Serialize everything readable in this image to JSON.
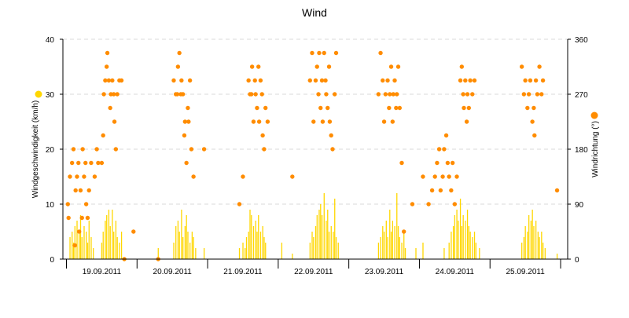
{
  "chart_data": {
    "type": "scatter",
    "title": "Wind",
    "ylabel_left": "Windgeschwindigkeit (km/h)",
    "ylabel_right": "Windrichtung (°)",
    "ylim_left": [
      0,
      40
    ],
    "yticks_left": [
      0,
      10,
      20,
      30,
      40
    ],
    "ylim_right": [
      0,
      360
    ],
    "yticks_right": [
      0,
      90,
      180,
      270,
      360
    ],
    "grid": true,
    "legend_placement": "beside-axis-labels",
    "x_tick_labels": [
      "19.09.2011",
      "20.09.2011",
      "21.09.2011",
      "22.09.2011",
      "23.09.2011",
      "24.09.2011",
      "25.09.2011"
    ],
    "x_unit": "day index (0 = 19.09.2011 00:00, label centred at midday)",
    "xlim": [
      -0.05,
      7.1
    ],
    "colors": {
      "speed": "#FFD700",
      "direction": "#FF8C00",
      "grid": "#d9d9d9",
      "axis": "#000000"
    },
    "series": [
      {
        "name": "Windgeschwindigkeit (km/h)",
        "type": "bar",
        "axis": "left",
        "values": [
          [
            0.05,
            4
          ],
          [
            0.08,
            5
          ],
          [
            0.1,
            3
          ],
          [
            0.12,
            6
          ],
          [
            0.15,
            7
          ],
          [
            0.18,
            5
          ],
          [
            0.2,
            8
          ],
          [
            0.22,
            4
          ],
          [
            0.25,
            6
          ],
          [
            0.28,
            5
          ],
          [
            0.3,
            3
          ],
          [
            0.32,
            7
          ],
          [
            0.35,
            4
          ],
          [
            0.38,
            2
          ],
          [
            0.5,
            3
          ],
          [
            0.52,
            5
          ],
          [
            0.55,
            7
          ],
          [
            0.57,
            8
          ],
          [
            0.6,
            9
          ],
          [
            0.62,
            6
          ],
          [
            0.65,
            9
          ],
          [
            0.67,
            5
          ],
          [
            0.7,
            7
          ],
          [
            0.72,
            4
          ],
          [
            0.75,
            3
          ],
          [
            0.78,
            5
          ],
          [
            1.3,
            2
          ],
          [
            1.52,
            3
          ],
          [
            1.55,
            6
          ],
          [
            1.58,
            7
          ],
          [
            1.6,
            5
          ],
          [
            1.63,
            9
          ],
          [
            1.65,
            4
          ],
          [
            1.68,
            6
          ],
          [
            1.7,
            8
          ],
          [
            1.72,
            5
          ],
          [
            1.75,
            3
          ],
          [
            1.78,
            5
          ],
          [
            1.8,
            4
          ],
          [
            1.83,
            2
          ],
          [
            1.95,
            2
          ],
          [
            2.45,
            2
          ],
          [
            2.5,
            3
          ],
          [
            2.53,
            2
          ],
          [
            2.55,
            4
          ],
          [
            2.58,
            5
          ],
          [
            2.6,
            9
          ],
          [
            2.62,
            8
          ],
          [
            2.65,
            6
          ],
          [
            2.68,
            7
          ],
          [
            2.7,
            5
          ],
          [
            2.72,
            8
          ],
          [
            2.75,
            5
          ],
          [
            2.78,
            6
          ],
          [
            2.8,
            4
          ],
          [
            2.82,
            3
          ],
          [
            3.05,
            3
          ],
          [
            3.2,
            1
          ],
          [
            3.45,
            3
          ],
          [
            3.48,
            5
          ],
          [
            3.5,
            4
          ],
          [
            3.53,
            6
          ],
          [
            3.55,
            8
          ],
          [
            3.58,
            9
          ],
          [
            3.6,
            10
          ],
          [
            3.62,
            8
          ],
          [
            3.65,
            12
          ],
          [
            3.68,
            7
          ],
          [
            3.7,
            9
          ],
          [
            3.72,
            5
          ],
          [
            3.75,
            6
          ],
          [
            3.78,
            5
          ],
          [
            3.8,
            11
          ],
          [
            3.82,
            4
          ],
          [
            3.85,
            3
          ],
          [
            4.42,
            3
          ],
          [
            4.45,
            4
          ],
          [
            4.48,
            6
          ],
          [
            4.5,
            5
          ],
          [
            4.53,
            7
          ],
          [
            4.55,
            4
          ],
          [
            4.58,
            9
          ],
          [
            4.6,
            5
          ],
          [
            4.62,
            7
          ],
          [
            4.65,
            6
          ],
          [
            4.68,
            12
          ],
          [
            4.7,
            6
          ],
          [
            4.72,
            4
          ],
          [
            4.75,
            3
          ],
          [
            4.78,
            5
          ],
          [
            4.8,
            2
          ],
          [
            4.95,
            2
          ],
          [
            5.05,
            3
          ],
          [
            5.35,
            2
          ],
          [
            5.42,
            3
          ],
          [
            5.45,
            5
          ],
          [
            5.48,
            6
          ],
          [
            5.5,
            8
          ],
          [
            5.53,
            9
          ],
          [
            5.55,
            7
          ],
          [
            5.58,
            11
          ],
          [
            5.6,
            6
          ],
          [
            5.62,
            8
          ],
          [
            5.65,
            7
          ],
          [
            5.68,
            9
          ],
          [
            5.7,
            6
          ],
          [
            5.72,
            5
          ],
          [
            5.75,
            4
          ],
          [
            5.78,
            5
          ],
          [
            5.8,
            3
          ],
          [
            5.85,
            2
          ],
          [
            6.45,
            3
          ],
          [
            6.48,
            4
          ],
          [
            6.5,
            6
          ],
          [
            6.53,
            5
          ],
          [
            6.55,
            8
          ],
          [
            6.58,
            7
          ],
          [
            6.6,
            9
          ],
          [
            6.62,
            6
          ],
          [
            6.65,
            7
          ],
          [
            6.68,
            5
          ],
          [
            6.7,
            4
          ],
          [
            6.73,
            5
          ],
          [
            6.75,
            3
          ],
          [
            6.78,
            2
          ],
          [
            6.95,
            1
          ]
        ]
      },
      {
        "name": "Windrichtung (°)",
        "type": "scatter",
        "axis": "right",
        "values": [
          [
            0.02,
            90
          ],
          [
            0.03,
            67.5
          ],
          [
            0.05,
            135
          ],
          [
            0.08,
            157.5
          ],
          [
            0.1,
            180
          ],
          [
            0.12,
            22.5
          ],
          [
            0.13,
            112.5
          ],
          [
            0.15,
            135
          ],
          [
            0.17,
            157.5
          ],
          [
            0.18,
            45
          ],
          [
            0.2,
            112.5
          ],
          [
            0.22,
            67.5
          ],
          [
            0.23,
            180
          ],
          [
            0.25,
            135
          ],
          [
            0.27,
            157.5
          ],
          [
            0.28,
            90
          ],
          [
            0.3,
            67.5
          ],
          [
            0.32,
            112.5
          ],
          [
            0.35,
            157.5
          ],
          [
            0.4,
            135
          ],
          [
            0.43,
            180
          ],
          [
            0.45,
            157.5
          ],
          [
            0.5,
            157.5
          ],
          [
            0.52,
            202.5
          ],
          [
            0.53,
            270
          ],
          [
            0.55,
            292.5
          ],
          [
            0.57,
            315
          ],
          [
            0.58,
            337.5
          ],
          [
            0.6,
            292.5
          ],
          [
            0.62,
            247.5
          ],
          [
            0.63,
            270
          ],
          [
            0.65,
            292.5
          ],
          [
            0.67,
            270
          ],
          [
            0.68,
            225
          ],
          [
            0.7,
            180
          ],
          [
            0.72,
            270
          ],
          [
            0.75,
            292.5
          ],
          [
            0.78,
            292.5
          ],
          [
            0.82,
            0
          ],
          [
            0.95,
            45
          ],
          [
            1.3,
            0
          ],
          [
            1.52,
            292.5
          ],
          [
            1.55,
            270
          ],
          [
            1.57,
            270
          ],
          [
            1.58,
            315
          ],
          [
            1.6,
            337.5
          ],
          [
            1.62,
            270
          ],
          [
            1.63,
            292.5
          ],
          [
            1.65,
            270
          ],
          [
            1.67,
            202.5
          ],
          [
            1.68,
            225
          ],
          [
            1.7,
            157.5
          ],
          [
            1.72,
            247.5
          ],
          [
            1.73,
            225
          ],
          [
            1.75,
            292.5
          ],
          [
            1.77,
            180
          ],
          [
            1.8,
            135
          ],
          [
            1.95,
            180
          ],
          [
            2.45,
            90
          ],
          [
            2.5,
            135
          ],
          [
            2.58,
            292.5
          ],
          [
            2.6,
            270
          ],
          [
            2.62,
            270
          ],
          [
            2.63,
            315
          ],
          [
            2.65,
            225
          ],
          [
            2.67,
            292.5
          ],
          [
            2.68,
            270
          ],
          [
            2.7,
            247.5
          ],
          [
            2.72,
            315
          ],
          [
            2.73,
            225
          ],
          [
            2.75,
            292.5
          ],
          [
            2.77,
            270
          ],
          [
            2.78,
            202.5
          ],
          [
            2.8,
            180
          ],
          [
            2.82,
            247.5
          ],
          [
            2.85,
            225
          ],
          [
            3.2,
            135
          ],
          [
            3.45,
            292.5
          ],
          [
            3.48,
            337.5
          ],
          [
            3.5,
            225
          ],
          [
            3.53,
            292.5
          ],
          [
            3.55,
            315
          ],
          [
            3.57,
            270
          ],
          [
            3.58,
            337.5
          ],
          [
            3.6,
            247.5
          ],
          [
            3.62,
            292.5
          ],
          [
            3.63,
            225
          ],
          [
            3.65,
            337.5
          ],
          [
            3.67,
            292.5
          ],
          [
            3.68,
            270
          ],
          [
            3.7,
            247.5
          ],
          [
            3.72,
            315
          ],
          [
            3.73,
            225
          ],
          [
            3.75,
            202.5
          ],
          [
            3.77,
            180
          ],
          [
            3.8,
            270
          ],
          [
            3.82,
            337.5
          ],
          [
            4.42,
            270
          ],
          [
            4.45,
            337.5
          ],
          [
            4.48,
            292.5
          ],
          [
            4.5,
            225
          ],
          [
            4.52,
            270
          ],
          [
            4.55,
            292.5
          ],
          [
            4.57,
            247.5
          ],
          [
            4.58,
            270
          ],
          [
            4.6,
            315
          ],
          [
            4.62,
            225
          ],
          [
            4.63,
            270
          ],
          [
            4.65,
            292.5
          ],
          [
            4.67,
            247.5
          ],
          [
            4.68,
            270
          ],
          [
            4.7,
            315
          ],
          [
            4.72,
            247.5
          ],
          [
            4.75,
            157.5
          ],
          [
            4.78,
            45
          ],
          [
            4.9,
            90
          ],
          [
            5.05,
            135
          ],
          [
            5.13,
            90
          ],
          [
            5.18,
            112.5
          ],
          [
            5.22,
            135
          ],
          [
            5.25,
            157.5
          ],
          [
            5.28,
            180
          ],
          [
            5.3,
            112.5
          ],
          [
            5.33,
            135
          ],
          [
            5.35,
            180
          ],
          [
            5.38,
            202.5
          ],
          [
            5.4,
            157.5
          ],
          [
            5.42,
            135
          ],
          [
            5.45,
            112.5
          ],
          [
            5.47,
            157.5
          ],
          [
            5.5,
            90
          ],
          [
            5.53,
            135
          ],
          [
            5.58,
            292.5
          ],
          [
            5.6,
            315
          ],
          [
            5.62,
            270
          ],
          [
            5.63,
            247.5
          ],
          [
            5.65,
            292.5
          ],
          [
            5.67,
            225
          ],
          [
            5.68,
            270
          ],
          [
            5.7,
            247.5
          ],
          [
            5.72,
            292.5
          ],
          [
            5.75,
            270
          ],
          [
            5.78,
            292.5
          ],
          [
            6.45,
            315
          ],
          [
            6.48,
            270
          ],
          [
            6.5,
            292.5
          ],
          [
            6.53,
            247.5
          ],
          [
            6.55,
            270
          ],
          [
            6.57,
            292.5
          ],
          [
            6.6,
            225
          ],
          [
            6.62,
            247.5
          ],
          [
            6.63,
            202.5
          ],
          [
            6.65,
            292.5
          ],
          [
            6.67,
            270
          ],
          [
            6.7,
            315
          ],
          [
            6.73,
            270
          ],
          [
            6.75,
            292.5
          ],
          [
            6.95,
            112.5
          ]
        ]
      }
    ]
  }
}
